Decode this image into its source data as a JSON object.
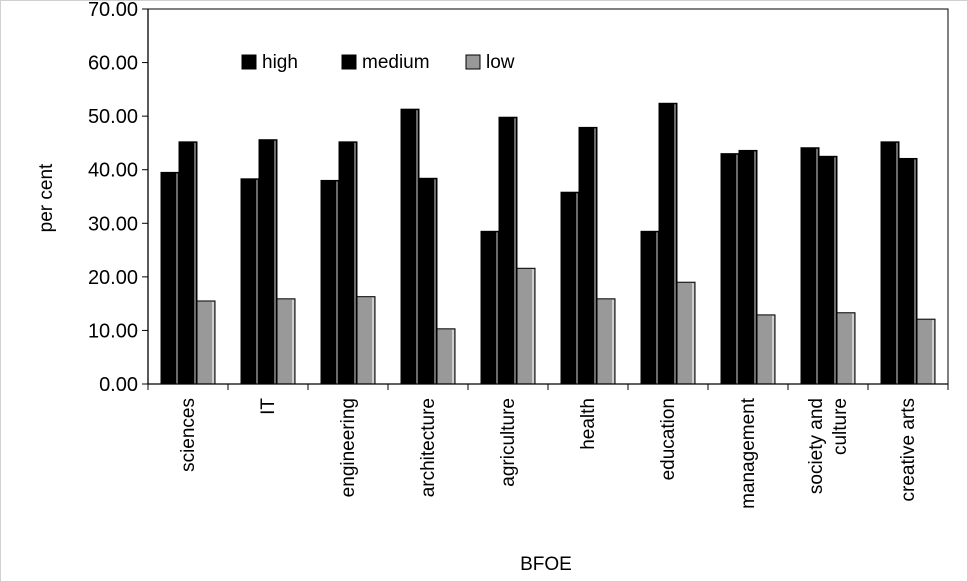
{
  "chart_data": {
    "type": "bar",
    "title": "",
    "xlabel": "BFOE",
    "ylabel": "per cent",
    "ylim": [
      0,
      70
    ],
    "y_ticks": [
      "0.00",
      "10.00",
      "20.00",
      "30.00",
      "40.00",
      "50.00",
      "60.00",
      "70.00"
    ],
    "grid": false,
    "legend_position": "top-left",
    "categories": [
      [
        "sciences"
      ],
      [
        "IT"
      ],
      [
        "engineering"
      ],
      [
        "architecture"
      ],
      [
        "agriculture"
      ],
      [
        "health"
      ],
      [
        "education"
      ],
      [
        "management"
      ],
      [
        "society and",
        "culture"
      ],
      [
        "creative arts"
      ]
    ],
    "series": [
      {
        "name": "high",
        "color": "#000000",
        "values": [
          39.5,
          38.3,
          38.0,
          51.3,
          28.5,
          35.8,
          28.5,
          43.0,
          44.1,
          45.2
        ]
      },
      {
        "name": "medium",
        "color": "#000000",
        "values": [
          45.2,
          45.6,
          45.2,
          38.4,
          49.8,
          47.9,
          52.4,
          43.6,
          42.5,
          42.1
        ]
      },
      {
        "name": "low",
        "color": "#999999",
        "values": [
          15.5,
          15.9,
          16.3,
          10.3,
          21.6,
          15.9,
          19.0,
          12.9,
          13.3,
          12.1
        ]
      }
    ]
  }
}
